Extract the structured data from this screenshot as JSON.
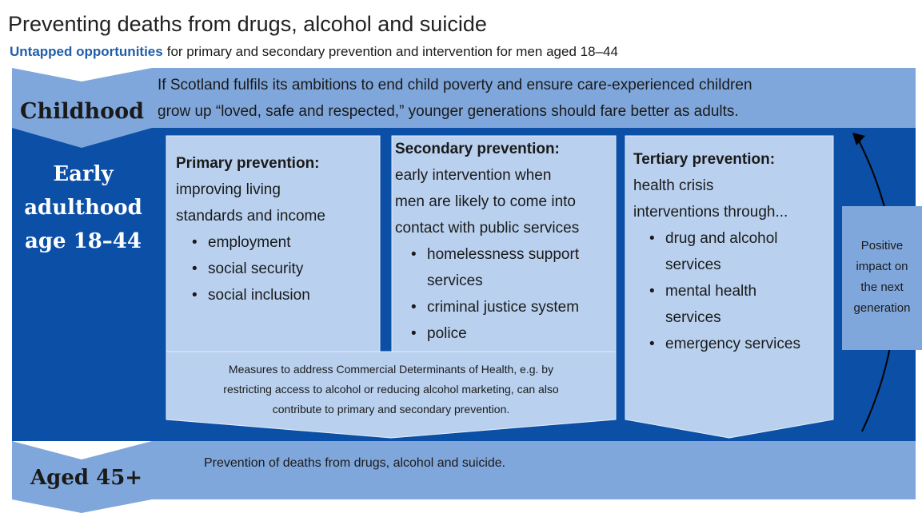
{
  "title": "Preventing deaths from drugs, alcohol and suicide",
  "subtitle": {
    "highlight": "Untapped opportunities",
    "rest": "for primary and secondary prevention and intervention for men aged 18–44"
  },
  "childhood": {
    "label": "Childhood",
    "text": [
      "If Scotland fulfils its ambitions to end child poverty and ensure care-experienced children",
      "grow up “loved, safe and respected,” younger generations should fare better as adults."
    ]
  },
  "early_adulthood": {
    "label": [
      "Early",
      "adulthood",
      "age 18–44"
    ]
  },
  "primary": {
    "heading": "Primary prevention:",
    "lines": [
      "improving living",
      "standards and income"
    ],
    "bullets": [
      [
        "employment"
      ],
      [
        "social security"
      ],
      [
        "social inclusion"
      ]
    ]
  },
  "secondary": {
    "heading": "Secondary prevention:",
    "lines": [
      "early intervention when",
      "men are likely to come into",
      "contact with public services"
    ],
    "bullets": [
      [
        "homelessness support",
        "services"
      ],
      [
        "criminal justice system"
      ],
      [
        "police"
      ]
    ]
  },
  "tertiary": {
    "heading": "Tertiary prevention:",
    "lines": [
      "health crisis",
      "interventions through..."
    ],
    "bullets": [
      [
        "drug and alcohol",
        "services"
      ],
      [
        "mental health",
        "services"
      ],
      [
        "emergency services"
      ]
    ]
  },
  "commercial": {
    "lines": [
      "Measures to address Commercial Determinants of Health, e.g. by",
      "restricting access to alcohol or reducing alcohol marketing, can also",
      "contribute to primary and secondary prevention."
    ]
  },
  "impact": {
    "lines": [
      "Positive",
      "impact on",
      "the next",
      "generation"
    ]
  },
  "aged_45": {
    "label": "Aged 45+",
    "text": "Prevention of deaths from drugs, alcohol and suicide."
  }
}
